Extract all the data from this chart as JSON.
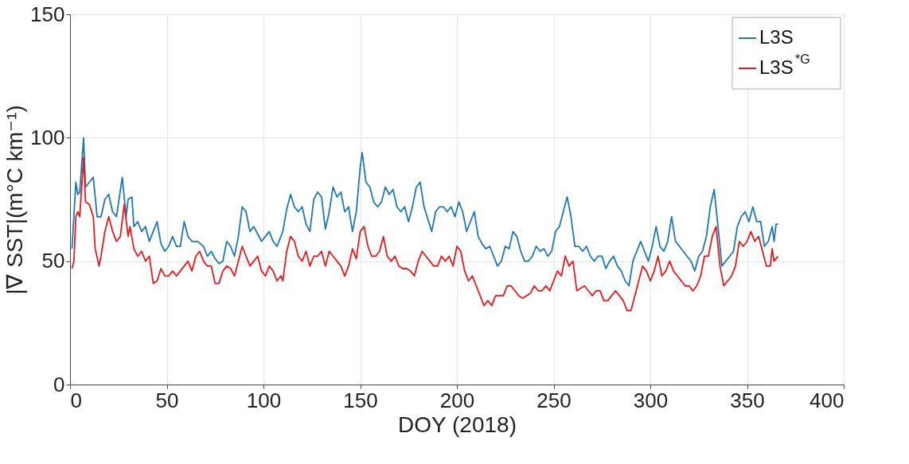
{
  "chart_data": {
    "type": "line",
    "xlabel": "DOY (2018)",
    "ylabel": "|∇ SST|(m°C km⁻¹)",
    "xlim": [
      0,
      400
    ],
    "xticks": [
      0,
      50,
      100,
      150,
      200,
      250,
      300,
      350,
      400
    ],
    "ylim": [
      0,
      150
    ],
    "yticks": [
      0,
      50,
      100,
      150
    ],
    "grid": true,
    "legend": "top right",
    "marker": "none",
    "line_style": "solid",
    "series": [
      {
        "name": "L3S",
        "color": "#1f77b4",
        "x": [
          1,
          3,
          4,
          5,
          7,
          8,
          10,
          12,
          14,
          16,
          18,
          20,
          22,
          24,
          27,
          29,
          30,
          32,
          33,
          35,
          37,
          39,
          41,
          43,
          45,
          47,
          49,
          51,
          53,
          55,
          57,
          59,
          61,
          63,
          66,
          69,
          71,
          73,
          75,
          77,
          79,
          81,
          83,
          85,
          87,
          89,
          91,
          93,
          95,
          97,
          99,
          101,
          103,
          105,
          107,
          110,
          112,
          114,
          116,
          118,
          120,
          122,
          124,
          126,
          128,
          130,
          132,
          134,
          136,
          138,
          140,
          142,
          144,
          146,
          148,
          150,
          151,
          153,
          155,
          157,
          159,
          161,
          163,
          165,
          167,
          169,
          171,
          173,
          175,
          177,
          179,
          181,
          183,
          185,
          187,
          189,
          191,
          193,
          195,
          197,
          199,
          201,
          203,
          205,
          207,
          209,
          211,
          213,
          215,
          217,
          219,
          221,
          223,
          225,
          227,
          229,
          231,
          233,
          235,
          237,
          239,
          241,
          243,
          245,
          247,
          249,
          251,
          253,
          255,
          257,
          259,
          261,
          263,
          265,
          267,
          269,
          271,
          273,
          275,
          277,
          279,
          281,
          283,
          285,
          287,
          289,
          291,
          293,
          295,
          297,
          299,
          301,
          303,
          305,
          307,
          309,
          311,
          313,
          315,
          317,
          319,
          321,
          323,
          325,
          327,
          329,
          331,
          333,
          335,
          337,
          339,
          341,
          343,
          345,
          347,
          349,
          351,
          353,
          355,
          357,
          359,
          361,
          363,
          364,
          365,
          366
        ],
        "values": [
          55,
          82,
          77,
          78,
          100,
          80,
          82,
          84,
          68,
          68,
          75,
          77,
          70,
          68,
          84,
          68,
          75,
          76,
          64,
          66,
          62,
          64,
          58,
          62,
          66,
          57,
          54,
          56,
          60,
          56,
          56,
          66,
          60,
          58,
          58,
          56,
          52,
          54,
          51,
          49,
          50,
          58,
          56,
          52,
          60,
          72,
          70,
          62,
          64,
          61,
          58,
          60,
          62,
          58,
          56,
          62,
          71,
          77,
          72,
          70,
          72,
          65,
          62,
          75,
          78,
          76,
          63,
          70,
          80,
          76,
          78,
          70,
          72,
          62,
          70,
          88,
          94,
          82,
          80,
          74,
          72,
          74,
          80,
          77,
          79,
          72,
          70,
          72,
          66,
          72,
          80,
          82,
          72,
          67,
          62,
          70,
          72,
          72,
          70,
          72,
          68,
          74,
          70,
          62,
          66,
          70,
          60,
          57,
          55,
          56,
          52,
          48,
          50,
          56,
          55,
          62,
          60,
          54,
          50,
          50,
          52,
          56,
          54,
          55,
          52,
          54,
          62,
          64,
          70,
          76,
          68,
          56,
          56,
          54,
          56,
          52,
          50,
          52,
          52,
          47,
          50,
          52,
          48,
          46,
          42,
          40,
          50,
          54,
          58,
          54,
          50,
          56,
          64,
          56,
          54,
          58,
          68,
          58,
          56,
          54,
          52,
          50,
          46,
          52,
          54,
          60,
          72,
          79,
          64,
          48,
          50,
          52,
          54,
          64,
          68,
          70,
          66,
          72,
          66,
          66,
          56,
          58,
          64,
          58,
          65,
          65
        ]
      },
      {
        "name": "L3S$^{*G}$",
        "color": "#e8191d",
        "x": [
          1,
          2,
          3,
          4,
          5,
          7,
          8,
          10,
          12,
          13,
          15,
          16,
          18,
          20,
          22,
          24,
          26,
          28,
          30,
          31,
          33,
          35,
          37,
          39,
          41,
          43,
          45,
          47,
          49,
          51,
          53,
          55,
          57,
          59,
          61,
          63,
          65,
          67,
          69,
          71,
          73,
          75,
          77,
          79,
          81,
          83,
          85,
          87,
          89,
          91,
          93,
          95,
          97,
          99,
          101,
          103,
          105,
          107,
          109,
          110,
          112,
          114,
          116,
          118,
          120,
          122,
          124,
          126,
          128,
          130,
          132,
          134,
          136,
          138,
          140,
          142,
          144,
          146,
          148,
          150,
          152,
          154,
          156,
          158,
          160,
          162,
          164,
          166,
          168,
          170,
          172,
          174,
          176,
          178,
          180,
          182,
          184,
          186,
          188,
          190,
          192,
          194,
          196,
          198,
          200,
          202,
          204,
          206,
          208,
          210,
          212,
          214,
          216,
          218,
          220,
          222,
          224,
          226,
          228,
          230,
          232,
          234,
          236,
          238,
          240,
          242,
          244,
          246,
          248,
          250,
          252,
          254,
          256,
          258,
          260,
          262,
          264,
          266,
          268,
          270,
          272,
          274,
          276,
          278,
          280,
          282,
          284,
          286,
          288,
          290,
          292,
          294,
          296,
          298,
          300,
          302,
          304,
          306,
          308,
          310,
          312,
          314,
          316,
          318,
          320,
          322,
          324,
          326,
          328,
          330,
          332,
          334,
          336,
          338,
          340,
          342,
          344,
          346,
          348,
          350,
          352,
          354,
          356,
          358,
          360,
          362,
          363,
          364,
          366
        ],
        "values": [
          47,
          50,
          68,
          70,
          68,
          92,
          74,
          73,
          68,
          55,
          48,
          52,
          62,
          68,
          62,
          58,
          60,
          73,
          60,
          64,
          55,
          52,
          54,
          50,
          52,
          41,
          42,
          47,
          44,
          44,
          46,
          44,
          46,
          48,
          50,
          46,
          52,
          54,
          50,
          48,
          48,
          41,
          41,
          46,
          48,
          47,
          44,
          50,
          56,
          52,
          48,
          50,
          52,
          46,
          44,
          48,
          46,
          42,
          44,
          42,
          54,
          60,
          58,
          52,
          50,
          54,
          48,
          52,
          52,
          54,
          48,
          54,
          52,
          50,
          48,
          44,
          48,
          55,
          51,
          62,
          64,
          56,
          52,
          52,
          54,
          60,
          52,
          50,
          52,
          48,
          47,
          47,
          46,
          44,
          50,
          54,
          52,
          50,
          48,
          48,
          52,
          50,
          52,
          48,
          56,
          54,
          46,
          42,
          44,
          40,
          36,
          32,
          34,
          32,
          36,
          36,
          36,
          40,
          40,
          38,
          36,
          35,
          36,
          37,
          40,
          38,
          38,
          40,
          38,
          42,
          46,
          44,
          52,
          48,
          50,
          38,
          39,
          40,
          38,
          36,
          38,
          38,
          34,
          34,
          36,
          38,
          36,
          34,
          30,
          30,
          36,
          42,
          48,
          46,
          42,
          46,
          52,
          44,
          46,
          50,
          46,
          44,
          42,
          40,
          40,
          38,
          40,
          44,
          52,
          52,
          60,
          64,
          48,
          40,
          42,
          44,
          48,
          58,
          56,
          58,
          62,
          58,
          60,
          54,
          48,
          48,
          55,
          50,
          52
        ]
      }
    ]
  }
}
